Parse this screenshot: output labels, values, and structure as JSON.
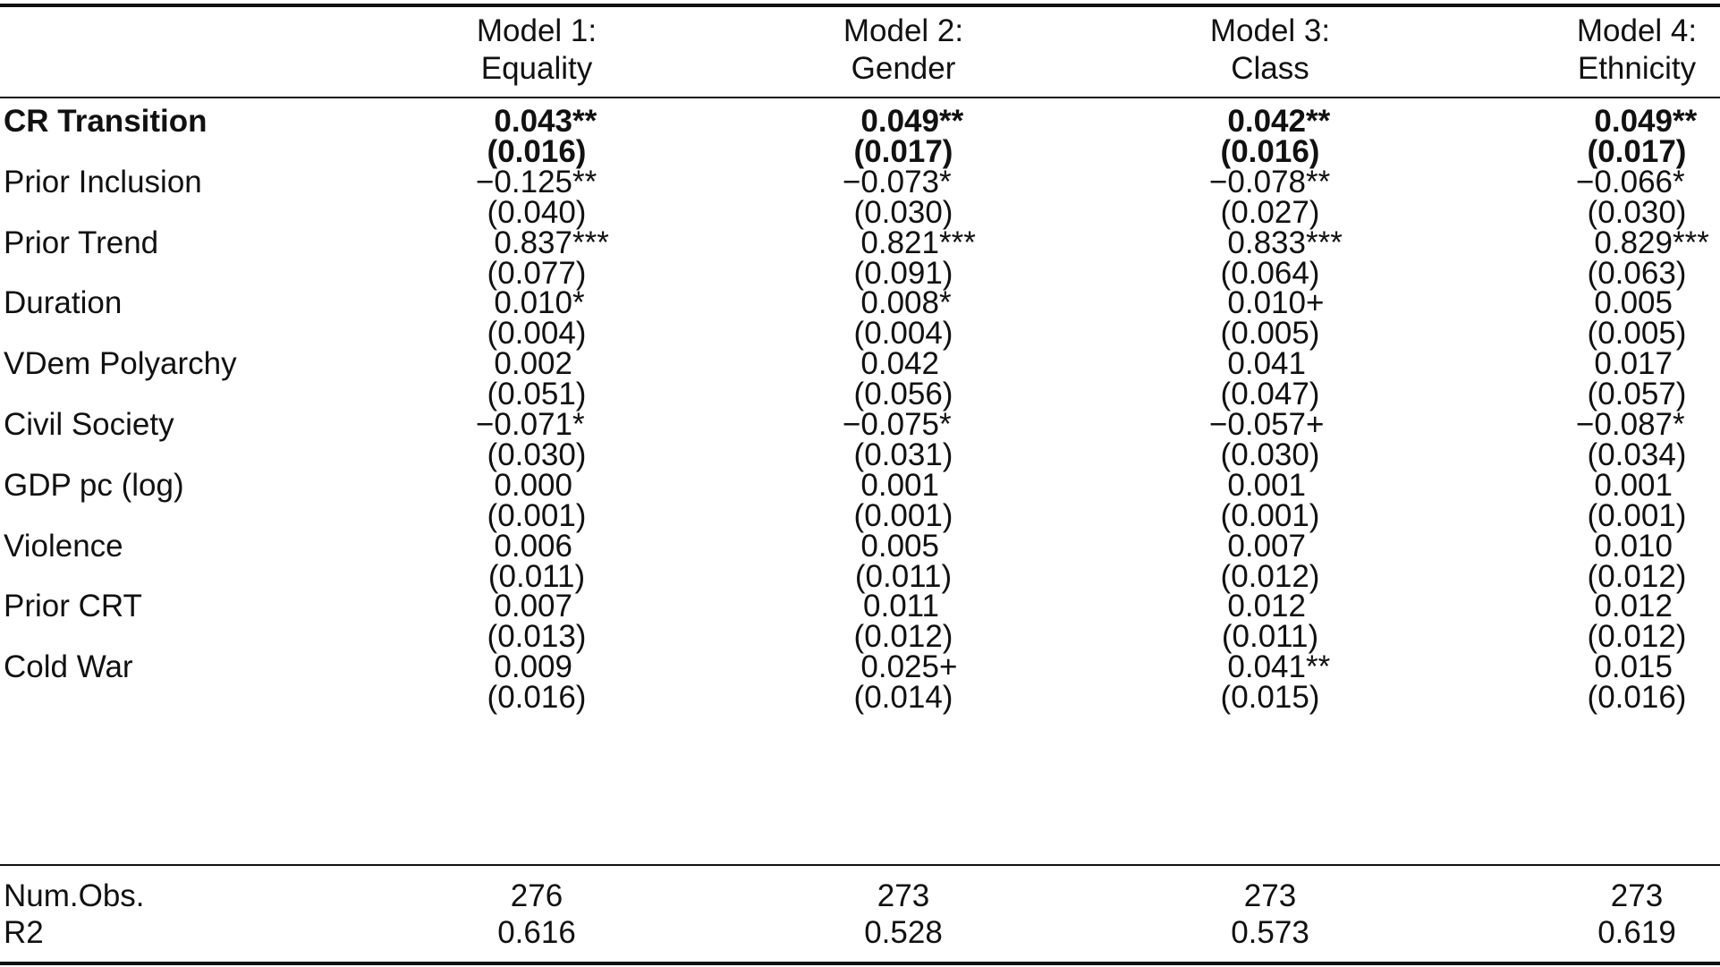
{
  "headers": [
    {
      "line1": "Model 1:",
      "line2": "Equality"
    },
    {
      "line1": "Model 2:",
      "line2": "Gender"
    },
    {
      "line1": "Model 3:",
      "line2": "Class"
    },
    {
      "line1": "Model 4:",
      "line2": "Ethnicity"
    }
  ],
  "rows": [
    {
      "label": "CR Transition",
      "bold": true,
      "coef": [
        [
          "0.043",
          "**"
        ],
        [
          "0.049",
          "**"
        ],
        [
          "0.042",
          "**"
        ],
        [
          "0.049",
          "**"
        ]
      ],
      "se": [
        "(0.016)",
        "(0.017)",
        "(0.016)",
        "(0.017)"
      ]
    },
    {
      "label": "Prior Inclusion",
      "coef": [
        [
          "−0.125",
          "**"
        ],
        [
          "−0.073",
          "*"
        ],
        [
          "−0.078",
          "**"
        ],
        [
          "−0.066",
          "*"
        ]
      ],
      "se": [
        "(0.040)",
        "(0.030)",
        "(0.027)",
        "(0.030)"
      ]
    },
    {
      "label": "Prior Trend",
      "coef": [
        [
          "0.837",
          "***"
        ],
        [
          "0.821",
          "***"
        ],
        [
          "0.833",
          "***"
        ],
        [
          "0.829",
          "***"
        ]
      ],
      "se": [
        "(0.077)",
        "(0.091)",
        "(0.064)",
        "(0.063)"
      ]
    },
    {
      "label": "Duration",
      "coef": [
        [
          "0.010",
          "*"
        ],
        [
          "0.008",
          "*"
        ],
        [
          "0.010",
          "+"
        ],
        [
          "0.005",
          ""
        ]
      ],
      "se": [
        "(0.004)",
        "(0.004)",
        "(0.005)",
        "(0.005)"
      ]
    },
    {
      "label": "VDem Polyarchy",
      "coef": [
        [
          "0.002",
          ""
        ],
        [
          "0.042",
          ""
        ],
        [
          "0.041",
          ""
        ],
        [
          "0.017",
          ""
        ]
      ],
      "se": [
        "(0.051)",
        "(0.056)",
        "(0.047)",
        "(0.057)"
      ]
    },
    {
      "label": "Civil Society",
      "coef": [
        [
          "−0.071",
          "*"
        ],
        [
          "−0.075",
          "*"
        ],
        [
          "−0.057",
          "+"
        ],
        [
          "−0.087",
          "*"
        ]
      ],
      "se": [
        "(0.030)",
        "(0.031)",
        "(0.030)",
        "(0.034)"
      ]
    },
    {
      "label": "GDP pc (log)",
      "coef": [
        [
          "0.000",
          ""
        ],
        [
          "0.001",
          ""
        ],
        [
          "0.001",
          ""
        ],
        [
          "0.001",
          ""
        ]
      ],
      "se": [
        "(0.001)",
        "(0.001)",
        "(0.001)",
        "(0.001)"
      ]
    },
    {
      "label": "Violence",
      "coef": [
        [
          "0.006",
          ""
        ],
        [
          "0.005",
          ""
        ],
        [
          "0.007",
          ""
        ],
        [
          "0.010",
          ""
        ]
      ],
      "se": [
        "(0.011)",
        "(0.011)",
        "(0.012)",
        "(0.012)"
      ]
    },
    {
      "label": "Prior CRT",
      "coef": [
        [
          "0.007",
          ""
        ],
        [
          "0.011",
          ""
        ],
        [
          "0.012",
          ""
        ],
        [
          "0.012",
          ""
        ]
      ],
      "se": [
        "(0.013)",
        "(0.012)",
        "(0.011)",
        "(0.012)"
      ]
    },
    {
      "label": "Cold War",
      "coef": [
        [
          "0.009",
          ""
        ],
        [
          "0.025",
          "+"
        ],
        [
          "0.041",
          "**"
        ],
        [
          "0.015",
          ""
        ]
      ],
      "se": [
        "(0.016)",
        "(0.014)",
        "(0.015)",
        "(0.016)"
      ]
    }
  ],
  "summary": [
    {
      "label": "Num.Obs.",
      "values": [
        "276",
        "273",
        "273",
        "273"
      ]
    },
    {
      "label": "R2",
      "values": [
        "0.616",
        "0.528",
        "0.573",
        "0.619"
      ]
    }
  ]
}
